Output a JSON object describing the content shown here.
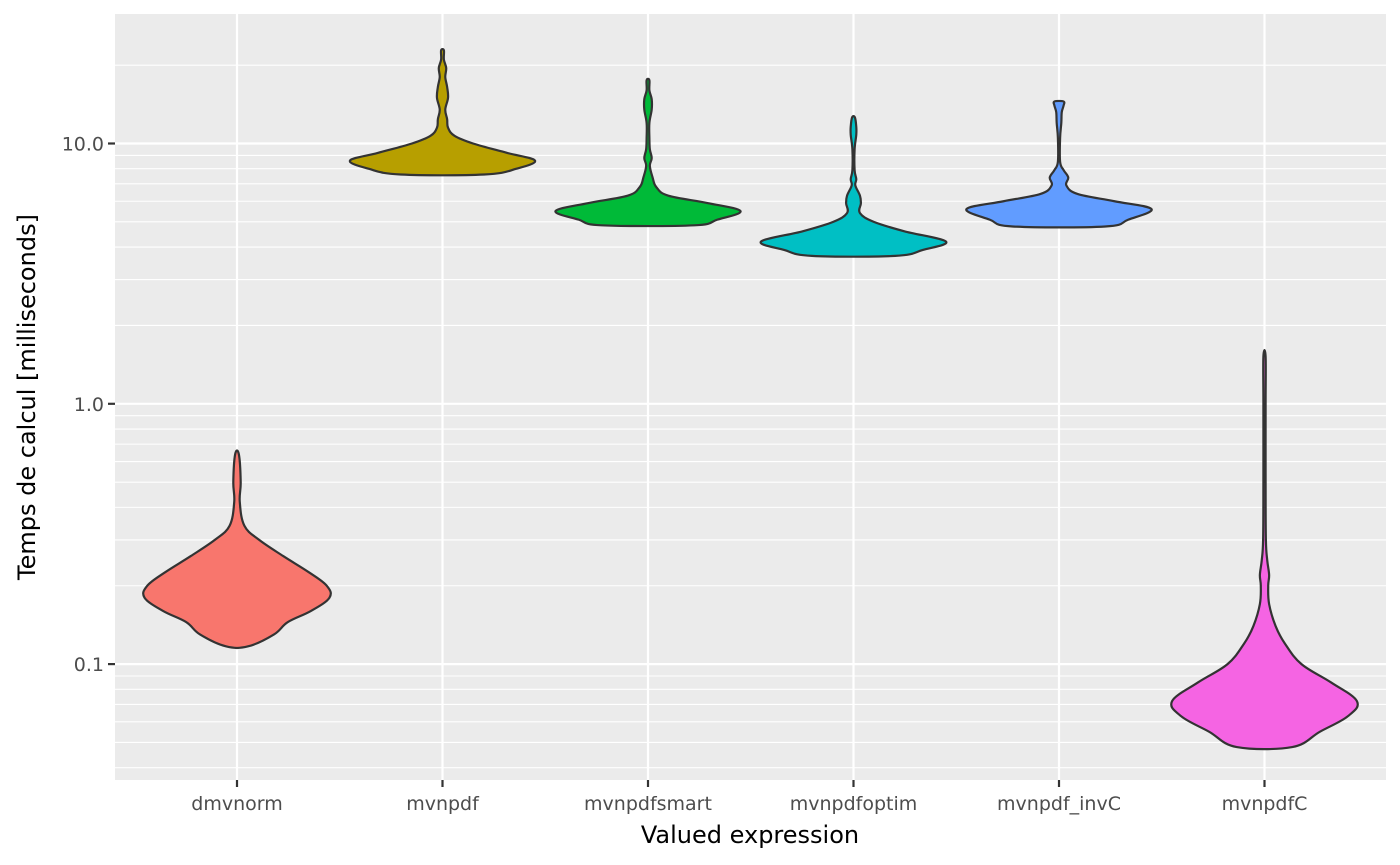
{
  "chart_data": {
    "type": "violin",
    "xlabel": "Valued expression",
    "ylabel": "Temps de calcul [milliseconds]",
    "y_scale": "log10",
    "ylim": [
      0.0385,
      28
    ],
    "y_major_ticks": [
      0.1,
      1.0,
      10.0
    ],
    "y_tick_labels": [
      "0.1",
      "1.0",
      "10.0"
    ],
    "grid": true,
    "legend": "none",
    "categories": [
      "dmvnorm",
      "mvnpdf",
      "mvnpdfsmart",
      "mvnpdfoptim",
      "mvnpdf_invC",
      "mvnpdfC"
    ],
    "series": [
      {
        "category": "dmvnorm",
        "color": "#F8766D",
        "min": 0.117,
        "max": 0.64,
        "profile": [
          [
            0.117,
            0.12
          ],
          [
            0.13,
            0.4
          ],
          [
            0.145,
            0.55
          ],
          [
            0.16,
            0.8
          ],
          [
            0.18,
            1.0
          ],
          [
            0.2,
            0.97
          ],
          [
            0.225,
            0.78
          ],
          [
            0.26,
            0.5
          ],
          [
            0.3,
            0.24
          ],
          [
            0.34,
            0.08
          ],
          [
            0.42,
            0.03
          ],
          [
            0.5,
            0.04
          ],
          [
            0.64,
            0.02
          ]
        ]
      },
      {
        "category": "mvnpdf",
        "color": "#B79F00",
        "min": 7.6,
        "max": 22.8,
        "profile": [
          [
            7.6,
            0.45
          ],
          [
            8.0,
            0.8
          ],
          [
            8.6,
            1.0
          ],
          [
            9.2,
            0.7
          ],
          [
            10.0,
            0.33
          ],
          [
            10.7,
            0.13
          ],
          [
            11.5,
            0.06
          ],
          [
            12.4,
            0.05
          ],
          [
            13.5,
            0.03
          ],
          [
            15.0,
            0.06
          ],
          [
            16.5,
            0.05
          ],
          [
            18.0,
            0.03
          ],
          [
            19.5,
            0.04
          ],
          [
            21.0,
            0.015
          ],
          [
            22.8,
            0.015
          ]
        ]
      },
      {
        "category": "mvnpdfsmart",
        "color": "#00BA38",
        "min": 4.85,
        "max": 17.5,
        "profile": [
          [
            4.85,
            0.5
          ],
          [
            5.1,
            0.75
          ],
          [
            5.5,
            1.0
          ],
          [
            5.9,
            0.65
          ],
          [
            6.3,
            0.22
          ],
          [
            6.8,
            0.09
          ],
          [
            7.4,
            0.05
          ],
          [
            8.2,
            0.02
          ],
          [
            8.8,
            0.04
          ],
          [
            9.5,
            0.02
          ],
          [
            10.5,
            0.015
          ],
          [
            12.0,
            0.015
          ],
          [
            13.5,
            0.04
          ],
          [
            14.8,
            0.04
          ],
          [
            16.0,
            0.015
          ],
          [
            17.5,
            0.015
          ]
        ]
      },
      {
        "category": "mvnpdfoptim",
        "color": "#00BFC4",
        "min": 3.7,
        "max": 12.6,
        "profile": [
          [
            3.7,
            0.45
          ],
          [
            3.9,
            0.75
          ],
          [
            4.2,
            1.0
          ],
          [
            4.6,
            0.55
          ],
          [
            5.0,
            0.22
          ],
          [
            5.4,
            0.07
          ],
          [
            5.9,
            0.08
          ],
          [
            6.3,
            0.07
          ],
          [
            6.9,
            0.02
          ],
          [
            7.3,
            0.03
          ],
          [
            7.9,
            0.012
          ],
          [
            9.5,
            0.012
          ],
          [
            10.8,
            0.03
          ],
          [
            11.6,
            0.03
          ],
          [
            12.6,
            0.015
          ]
        ]
      },
      {
        "category": "mvnpdf_invC",
        "color": "#619CFF",
        "min": 4.8,
        "max": 14.5,
        "profile": [
          [
            4.8,
            0.5
          ],
          [
            5.1,
            0.75
          ],
          [
            5.6,
            1.0
          ],
          [
            6.0,
            0.6
          ],
          [
            6.4,
            0.2
          ],
          [
            6.9,
            0.08
          ],
          [
            7.4,
            0.1
          ],
          [
            7.9,
            0.05
          ],
          [
            8.5,
            0.012
          ],
          [
            10.5,
            0.012
          ],
          [
            12.0,
            0.025
          ],
          [
            13.2,
            0.03
          ],
          [
            14.0,
            0.05
          ],
          [
            14.5,
            0.05
          ]
        ]
      },
      {
        "category": "mvnpdfC",
        "color": "#F564E3",
        "min": 0.048,
        "max": 1.52,
        "profile": [
          [
            0.048,
            0.3
          ],
          [
            0.055,
            0.6
          ],
          [
            0.063,
            0.9
          ],
          [
            0.072,
            1.0
          ],
          [
            0.085,
            0.72
          ],
          [
            0.1,
            0.4
          ],
          [
            0.12,
            0.22
          ],
          [
            0.14,
            0.12
          ],
          [
            0.17,
            0.05
          ],
          [
            0.2,
            0.04
          ],
          [
            0.22,
            0.05
          ],
          [
            0.25,
            0.03
          ],
          [
            0.3,
            0.015
          ],
          [
            0.5,
            0.012
          ],
          [
            1.0,
            0.012
          ],
          [
            1.52,
            0.012
          ]
        ]
      }
    ]
  }
}
